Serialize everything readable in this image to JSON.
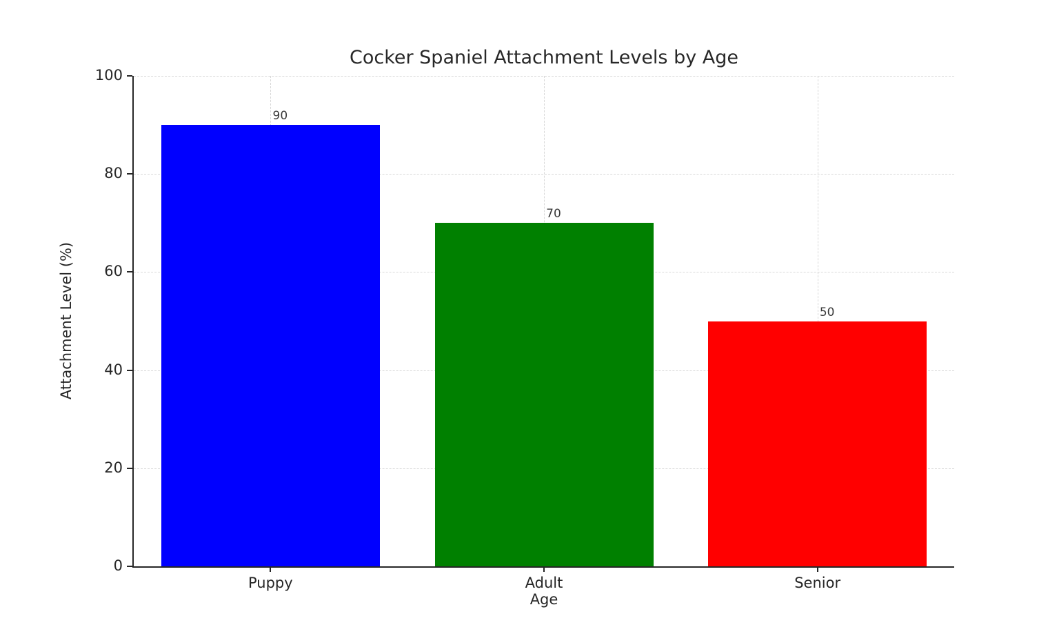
{
  "figure": {
    "background_color": "#ffffff",
    "text_color": "#262626"
  },
  "chart_data": {
    "type": "bar",
    "title": "Cocker Spaniel Attachment Levels by Age",
    "xlabel": "Age",
    "ylabel": "Attachment Level (%)",
    "categories": [
      "Puppy",
      "Adult",
      "Senior"
    ],
    "values": [
      90,
      70,
      50
    ],
    "value_labels": [
      "90",
      "70",
      "50"
    ],
    "bar_colors": [
      "#0000ff",
      "#008000",
      "#ff0000"
    ],
    "ylim": [
      0,
      100
    ],
    "yticks": [
      0,
      20,
      40,
      60,
      80,
      100
    ],
    "ytick_labels": [
      "0",
      "20",
      "40",
      "60",
      "80",
      "100"
    ],
    "bar_width_fraction": 0.8,
    "grid": "dashed horizontal and vertical gridlines, light gray",
    "legend": "none",
    "gridline_color": "#d8d8d8",
    "spine_color": "#262626"
  }
}
